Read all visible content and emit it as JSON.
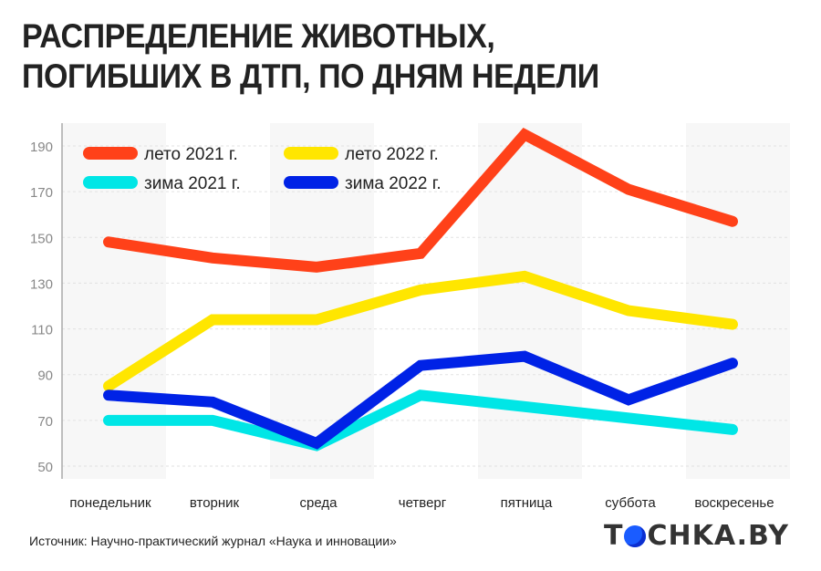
{
  "title": [
    "РАСПРЕДЕЛЕНИЕ ЖИВОТНЫХ,",
    "ПОГИБШИХ В ДТП, ПО ДНЯМ НЕДЕЛИ"
  ],
  "source": "Источник: Научно-практический журнал «Наука и инновации»",
  "logo": "TOCHKA.BY",
  "chart_data": {
    "type": "line",
    "categories": [
      "понедельник",
      "вторник",
      "среда",
      "четверг",
      "пятница",
      "суббота",
      "воскресенье"
    ],
    "ylim": [
      50,
      190
    ],
    "yticks": [
      50,
      70,
      90,
      110,
      130,
      150,
      170,
      190
    ],
    "grid": true,
    "legend": "top-left",
    "series": [
      {
        "name": "лето  2021 г.",
        "color": "#ff4119",
        "values": [
          148,
          141,
          137,
          143,
          195,
          171,
          157
        ]
      },
      {
        "name": "лето  2022 г.",
        "color": "#ffe600",
        "values": [
          85,
          114,
          114,
          127,
          133,
          118,
          112
        ]
      },
      {
        "name": "зима 2021 г.",
        "color": "#00e6e6",
        "values": [
          70,
          70,
          59,
          81,
          76,
          71,
          66
        ]
      },
      {
        "name": "зима 2022 г.",
        "color": "#0022e6",
        "values": [
          81,
          78,
          60,
          94,
          98,
          79,
          95
        ]
      }
    ]
  }
}
